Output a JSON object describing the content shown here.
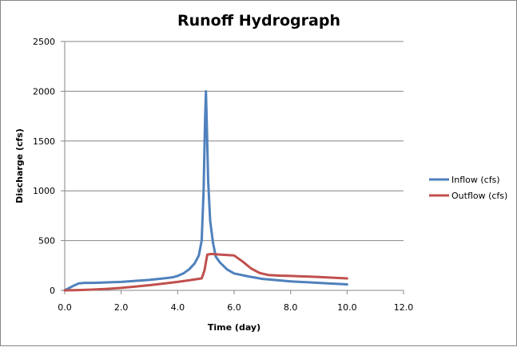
{
  "chart_data": {
    "type": "line",
    "title": "Runoff Hydrograph",
    "xlabel": "Time (day)",
    "ylabel": "Discharge (cfs)",
    "xlim": [
      0,
      12
    ],
    "ylim": [
      0,
      2500
    ],
    "x_ticks": [
      "0.0",
      "2.0",
      "4.0",
      "6.0",
      "8.0",
      "10.0",
      "12.0"
    ],
    "y_ticks": [
      "0",
      "500",
      "1000",
      "1500",
      "2000",
      "2500"
    ],
    "grid": "horizontal",
    "legend_position": "right",
    "series": [
      {
        "name": "Inflow (cfs)",
        "color": "#4F81BD",
        "points": [
          [
            0.0,
            0
          ],
          [
            0.3,
            45
          ],
          [
            0.5,
            70
          ],
          [
            0.7,
            75
          ],
          [
            1.0,
            75
          ],
          [
            1.5,
            80
          ],
          [
            2.0,
            85
          ],
          [
            2.5,
            95
          ],
          [
            3.0,
            105
          ],
          [
            3.5,
            120
          ],
          [
            3.8,
            130
          ],
          [
            4.0,
            145
          ],
          [
            4.2,
            170
          ],
          [
            4.4,
            210
          ],
          [
            4.6,
            270
          ],
          [
            4.75,
            350
          ],
          [
            4.85,
            500
          ],
          [
            4.92,
            1000
          ],
          [
            4.97,
            1700
          ],
          [
            5.0,
            2000
          ],
          [
            5.03,
            1700
          ],
          [
            5.08,
            1100
          ],
          [
            5.15,
            700
          ],
          [
            5.25,
            480
          ],
          [
            5.35,
            340
          ],
          [
            5.5,
            280
          ],
          [
            5.75,
            210
          ],
          [
            6.0,
            170
          ],
          [
            6.5,
            140
          ],
          [
            7.0,
            115
          ],
          [
            8.0,
            90
          ],
          [
            9.0,
            75
          ],
          [
            10.0,
            60
          ]
        ]
      },
      {
        "name": "Outflow (cfs)",
        "color": "#C0504D",
        "points": [
          [
            0.0,
            0
          ],
          [
            0.5,
            3
          ],
          [
            1.0,
            8
          ],
          [
            1.5,
            15
          ],
          [
            2.0,
            25
          ],
          [
            2.5,
            38
          ],
          [
            3.0,
            52
          ],
          [
            3.5,
            68
          ],
          [
            4.0,
            85
          ],
          [
            4.5,
            105
          ],
          [
            4.85,
            120
          ],
          [
            4.95,
            200
          ],
          [
            5.05,
            360
          ],
          [
            5.2,
            365
          ],
          [
            5.5,
            360
          ],
          [
            6.0,
            350
          ],
          [
            6.3,
            290
          ],
          [
            6.6,
            220
          ],
          [
            6.9,
            175
          ],
          [
            7.2,
            155
          ],
          [
            7.6,
            148
          ],
          [
            8.0,
            145
          ],
          [
            9.0,
            135
          ],
          [
            10.0,
            120
          ]
        ]
      }
    ]
  }
}
